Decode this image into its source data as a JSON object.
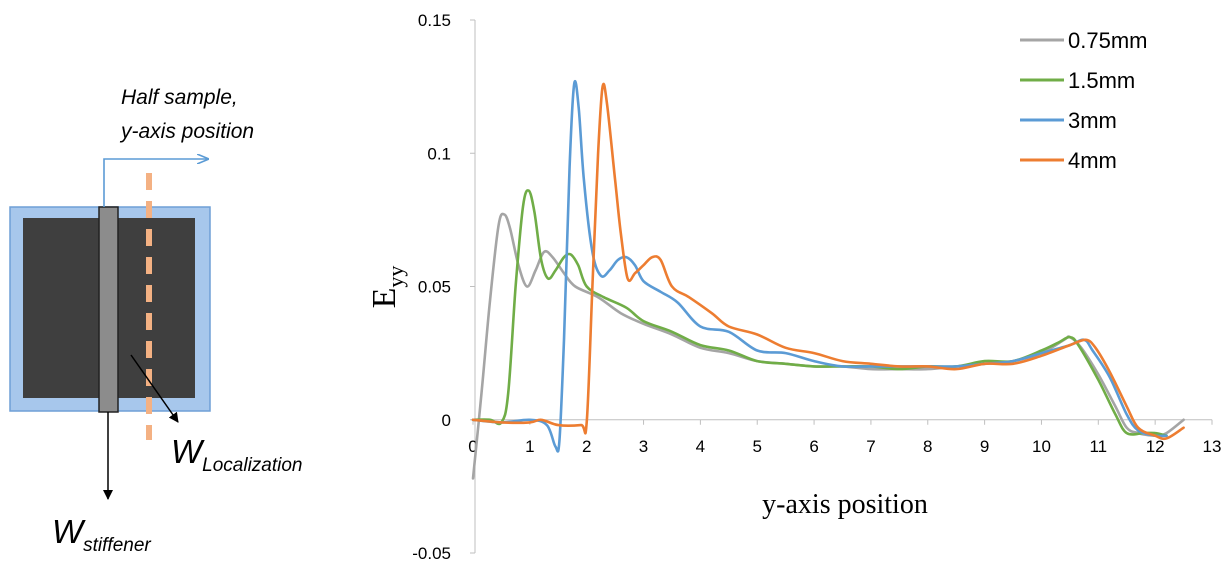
{
  "diagram": {
    "arrow_label_line1": "Half sample,",
    "arrow_label_line2": "y-axis position",
    "stiffener_label_main": "W",
    "stiffener_label_sub": "stiffener",
    "localization_label_main": "W",
    "localization_label_sub": "Localization",
    "colors": {
      "frame": "#a7c7ec",
      "frame_border": "#6f9fd6",
      "core": "#3f3f3f",
      "stiffener": "#8c8c8c",
      "localization_line": "#f4b183",
      "arrow": "#5b9bd5"
    }
  },
  "chart_data": {
    "type": "line",
    "title": "",
    "xlabel": "y-axis position",
    "ylabel_main": "E",
    "ylabel_sub": "yy",
    "xlim": [
      0,
      13
    ],
    "ylim": [
      -0.05,
      0.15
    ],
    "xticks": [
      0,
      1,
      2,
      3,
      4,
      5,
      6,
      7,
      8,
      9,
      10,
      11,
      12,
      13
    ],
    "yticks": [
      -0.05,
      0,
      0.05,
      0.1,
      0.15
    ],
    "ytick_labels": [
      "-0.05",
      "0",
      "0.05",
      "0.1",
      "0.15"
    ],
    "grid": false,
    "legend_position": "top-right",
    "series": [
      {
        "name": "0.75mm",
        "color": "#a5a5a5",
        "points": [
          [
            0,
            -0.022
          ],
          [
            0.15,
            0.01
          ],
          [
            0.3,
            0.045
          ],
          [
            0.45,
            0.073
          ],
          [
            0.55,
            0.077
          ],
          [
            0.65,
            0.072
          ],
          [
            0.8,
            0.058
          ],
          [
            0.95,
            0.05
          ],
          [
            1.1,
            0.056
          ],
          [
            1.25,
            0.063
          ],
          [
            1.4,
            0.061
          ],
          [
            1.6,
            0.055
          ],
          [
            1.8,
            0.05
          ],
          [
            2.2,
            0.046
          ],
          [
            2.6,
            0.04
          ],
          [
            3.0,
            0.036
          ],
          [
            3.5,
            0.032
          ],
          [
            4.0,
            0.027
          ],
          [
            4.5,
            0.025
          ],
          [
            5.0,
            0.022
          ],
          [
            5.5,
            0.021
          ],
          [
            6.0,
            0.02
          ],
          [
            6.5,
            0.02
          ],
          [
            7.0,
            0.019
          ],
          [
            7.5,
            0.019
          ],
          [
            8.0,
            0.019
          ],
          [
            8.5,
            0.02
          ],
          [
            9.0,
            0.021
          ],
          [
            9.5,
            0.022
          ],
          [
            10.0,
            0.025
          ],
          [
            10.4,
            0.03
          ],
          [
            10.5,
            0.031
          ],
          [
            10.7,
            0.027
          ],
          [
            11.0,
            0.017
          ],
          [
            11.3,
            0.005
          ],
          [
            11.5,
            -0.003
          ],
          [
            11.7,
            -0.005
          ],
          [
            12.0,
            -0.006
          ],
          [
            12.2,
            -0.005
          ],
          [
            12.5,
            0
          ]
        ]
      },
      {
        "name": "1.5mm",
        "color": "#70ad47",
        "points": [
          [
            0,
            0
          ],
          [
            0.3,
            0
          ],
          [
            0.5,
            -0.001
          ],
          [
            0.62,
            0.01
          ],
          [
            0.75,
            0.05
          ],
          [
            0.88,
            0.08
          ],
          [
            0.98,
            0.086
          ],
          [
            1.08,
            0.078
          ],
          [
            1.2,
            0.06
          ],
          [
            1.32,
            0.053
          ],
          [
            1.45,
            0.056
          ],
          [
            1.6,
            0.061
          ],
          [
            1.72,
            0.062
          ],
          [
            1.85,
            0.058
          ],
          [
            2.0,
            0.05
          ],
          [
            2.3,
            0.046
          ],
          [
            2.7,
            0.042
          ],
          [
            3.0,
            0.037
          ],
          [
            3.5,
            0.033
          ],
          [
            4.0,
            0.028
          ],
          [
            4.5,
            0.026
          ],
          [
            5.0,
            0.022
          ],
          [
            5.5,
            0.021
          ],
          [
            6.0,
            0.02
          ],
          [
            6.5,
            0.02
          ],
          [
            7.0,
            0.02
          ],
          [
            7.5,
            0.019
          ],
          [
            8.0,
            0.02
          ],
          [
            8.5,
            0.02
          ],
          [
            9.0,
            0.022
          ],
          [
            9.5,
            0.022
          ],
          [
            10.0,
            0.026
          ],
          [
            10.3,
            0.029
          ],
          [
            10.5,
            0.031
          ],
          [
            10.65,
            0.028
          ],
          [
            11.0,
            0.015
          ],
          [
            11.3,
            0.002
          ],
          [
            11.5,
            -0.005
          ],
          [
            11.8,
            -0.005
          ],
          [
            12.0,
            -0.005
          ],
          [
            12.2,
            -0.006
          ]
        ]
      },
      {
        "name": "3mm",
        "color": "#5b9bd5",
        "points": [
          [
            0,
            0
          ],
          [
            0.5,
            -0.001
          ],
          [
            1.0,
            0
          ],
          [
            1.3,
            -0.002
          ],
          [
            1.45,
            -0.01
          ],
          [
            1.52,
            -0.008
          ],
          [
            1.6,
            0.03
          ],
          [
            1.7,
            0.095
          ],
          [
            1.78,
            0.126
          ],
          [
            1.86,
            0.117
          ],
          [
            1.95,
            0.09
          ],
          [
            2.1,
            0.063
          ],
          [
            2.25,
            0.054
          ],
          [
            2.4,
            0.056
          ],
          [
            2.55,
            0.06
          ],
          [
            2.7,
            0.061
          ],
          [
            2.85,
            0.058
          ],
          [
            3.0,
            0.052
          ],
          [
            3.3,
            0.048
          ],
          [
            3.6,
            0.044
          ],
          [
            4.0,
            0.035
          ],
          [
            4.5,
            0.033
          ],
          [
            5.0,
            0.026
          ],
          [
            5.5,
            0.025
          ],
          [
            6.0,
            0.022
          ],
          [
            6.5,
            0.02
          ],
          [
            7.0,
            0.02
          ],
          [
            7.5,
            0.02
          ],
          [
            8.0,
            0.02
          ],
          [
            8.5,
            0.02
          ],
          [
            9.0,
            0.021
          ],
          [
            9.5,
            0.022
          ],
          [
            10.0,
            0.025
          ],
          [
            10.5,
            0.028
          ],
          [
            10.75,
            0.03
          ],
          [
            10.9,
            0.026
          ],
          [
            11.2,
            0.016
          ],
          [
            11.5,
            0.002
          ],
          [
            11.7,
            -0.004
          ],
          [
            12.0,
            -0.006
          ],
          [
            12.2,
            -0.006
          ]
        ]
      },
      {
        "name": "4mm",
        "color": "#ed7d31",
        "points": [
          [
            0,
            0
          ],
          [
            0.5,
            -0.001
          ],
          [
            1.0,
            -0.001
          ],
          [
            1.2,
            0
          ],
          [
            1.5,
            -0.002
          ],
          [
            1.9,
            -0.002
          ],
          [
            2.0,
            -0.001
          ],
          [
            2.1,
            0.05
          ],
          [
            2.2,
            0.1
          ],
          [
            2.28,
            0.125
          ],
          [
            2.36,
            0.118
          ],
          [
            2.5,
            0.09
          ],
          [
            2.6,
            0.07
          ],
          [
            2.72,
            0.053
          ],
          [
            2.85,
            0.055
          ],
          [
            3.0,
            0.058
          ],
          [
            3.15,
            0.061
          ],
          [
            3.3,
            0.06
          ],
          [
            3.5,
            0.05
          ],
          [
            3.8,
            0.046
          ],
          [
            4.2,
            0.04
          ],
          [
            4.5,
            0.035
          ],
          [
            5.0,
            0.032
          ],
          [
            5.5,
            0.027
          ],
          [
            6.0,
            0.025
          ],
          [
            6.5,
            0.022
          ],
          [
            7.0,
            0.021
          ],
          [
            7.5,
            0.02
          ],
          [
            8.0,
            0.02
          ],
          [
            8.5,
            0.019
          ],
          [
            9.0,
            0.021
          ],
          [
            9.5,
            0.021
          ],
          [
            10.0,
            0.024
          ],
          [
            10.5,
            0.028
          ],
          [
            10.78,
            0.03
          ],
          [
            10.95,
            0.027
          ],
          [
            11.2,
            0.018
          ],
          [
            11.5,
            0.005
          ],
          [
            11.7,
            -0.003
          ],
          [
            12.0,
            -0.006
          ],
          [
            12.2,
            -0.007
          ],
          [
            12.5,
            -0.003
          ]
        ]
      }
    ]
  }
}
